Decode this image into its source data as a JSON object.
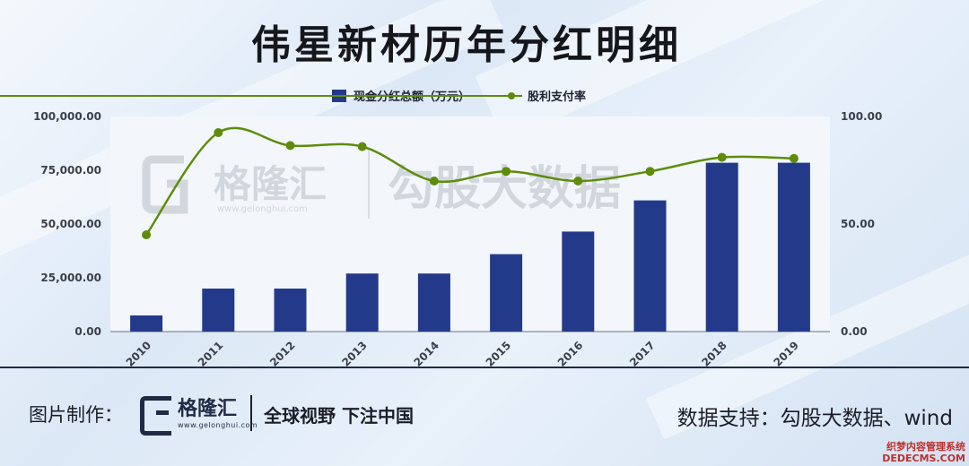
{
  "title": "伟星新材历年分红明细",
  "watermark": {
    "brand": "格隆汇",
    "url": "www.gelonghui.com",
    "text": "勾股大数据"
  },
  "footer": {
    "made_by_label": "图片制作：",
    "brand": "格隆汇",
    "brand_url": "www.gelonghui.com",
    "slogan": "全球视野 下注中国",
    "data_source": "数据支持：勾股大数据、wind",
    "corner_mark_line1": "织梦内容管理系统",
    "corner_mark_line2": "DEDECMS.COM"
  },
  "chart_data": {
    "type": "bar",
    "categories": [
      "2010",
      "2011",
      "2012",
      "2013",
      "2014",
      "2015",
      "2016",
      "2017",
      "2018",
      "2019"
    ],
    "series": [
      {
        "name": "现金分红总额（万元）",
        "type": "bar",
        "axis": "left",
        "color": "#233a8b",
        "values": [
          7500,
          20000,
          20000,
          27000,
          27000,
          36000,
          46500,
          61000,
          78500,
          78500
        ]
      },
      {
        "name": "股利支付率",
        "type": "line",
        "axis": "right",
        "color": "#5e8c0a",
        "values": [
          45,
          92.5,
          86.5,
          86,
          70,
          74.5,
          70,
          74.5,
          81,
          80.5
        ]
      }
    ],
    "left_axis": {
      "ylim": [
        0,
        100000
      ],
      "ticks": [
        "0.00",
        "25,000.00",
        "50,000.00",
        "75,000.00",
        "100,000.00"
      ]
    },
    "right_axis": {
      "ylim": [
        0,
        100
      ],
      "ticks": [
        "0.00",
        "50.00",
        "100.00"
      ]
    },
    "legend_position": "top-center",
    "grid": false
  }
}
